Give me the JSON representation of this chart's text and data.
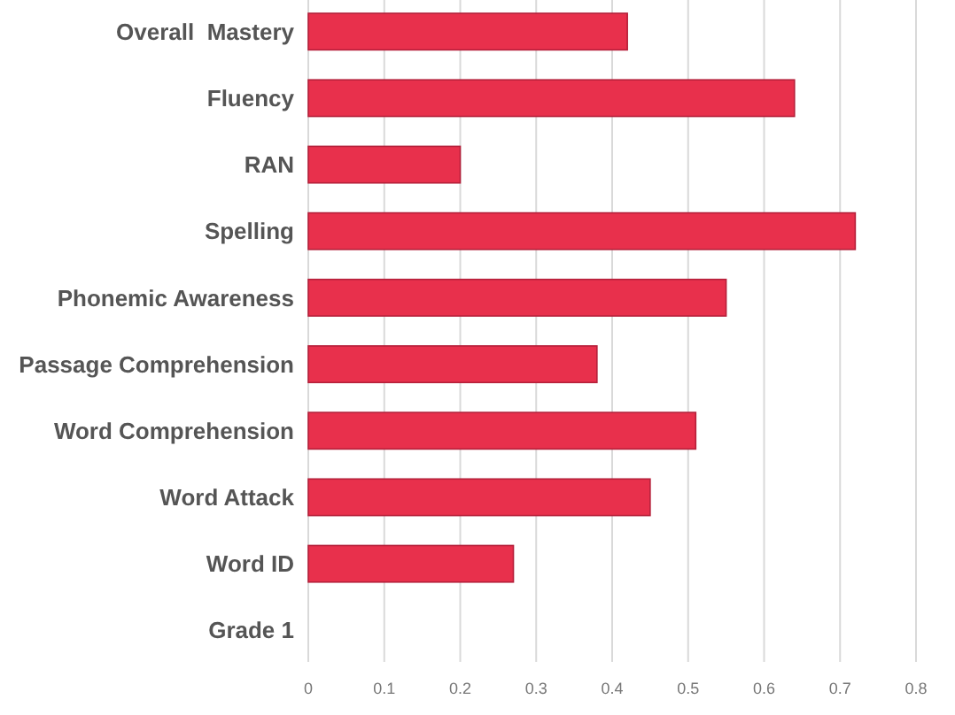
{
  "chart_data": {
    "type": "bar",
    "orientation": "horizontal",
    "categories": [
      "Overall  Mastery",
      "Fluency",
      "RAN",
      "Spelling",
      "Phonemic Awareness",
      "Passage Comprehension",
      "Word Comprehension",
      "Word Attack",
      "Word ID",
      "Grade 1"
    ],
    "values": [
      0.42,
      0.64,
      0.2,
      0.72,
      0.55,
      0.38,
      0.51,
      0.45,
      0.27,
      null
    ],
    "color": "#e8304c",
    "xlim": [
      0,
      0.8
    ],
    "xticks": [
      0,
      0.1,
      0.2,
      0.3,
      0.4,
      0.5,
      0.6,
      0.7,
      0.8
    ],
    "grid": "x"
  }
}
